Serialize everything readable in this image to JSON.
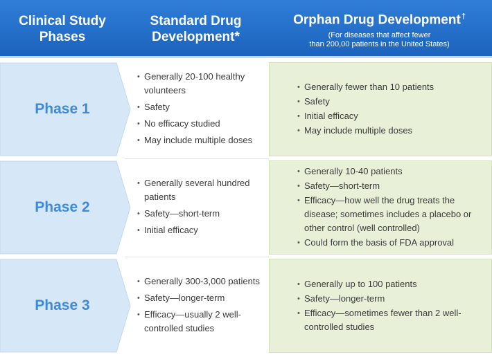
{
  "header": {
    "col1_title": "Clinical Study\nPhases",
    "col2_title": "Standard Drug\nDevelopment*",
    "col3_title": "Orphan Drug Development",
    "col3_mark": "†",
    "col3_subtitle": "(For diseases that affect fewer\nthan 200,00 patients in the United States)"
  },
  "colors": {
    "header": "#1c63bd",
    "phase_fill": "#d6e7f7",
    "phase_text": "#3e8ad6",
    "orphan_fill": "#e8f1d8"
  },
  "rows": [
    {
      "phase": "Phase 1",
      "standard": [
        "Generally 20-100 healthy volunteers",
        "Safety",
        "No efficacy studied",
        "May include multiple doses"
      ],
      "orphan": [
        "Generally fewer than 10 patients",
        "Safety",
        "Initial efficacy",
        "May include multiple doses"
      ]
    },
    {
      "phase": "Phase 2",
      "standard": [
        "Generally several hundred patients",
        "Safety—short-term",
        "Initial efficacy"
      ],
      "orphan": [
        "Generally 10-40 patients",
        "Safety—short-term",
        "Efficacy—how well the drug treats the disease; sometimes includes a placebo or other control (well controlled)",
        "Could form the basis of FDA approval"
      ]
    },
    {
      "phase": "Phase 3",
      "standard": [
        "Generally 300-3,000 patients",
        "Safety—longer-term",
        "Efficacy—usually 2 well-controlled studies"
      ],
      "orphan": [
        "Generally up to 100 patients",
        "Safety—longer-term",
        "Efficacy—sometimes fewer than 2 well-controlled studies"
      ]
    }
  ]
}
